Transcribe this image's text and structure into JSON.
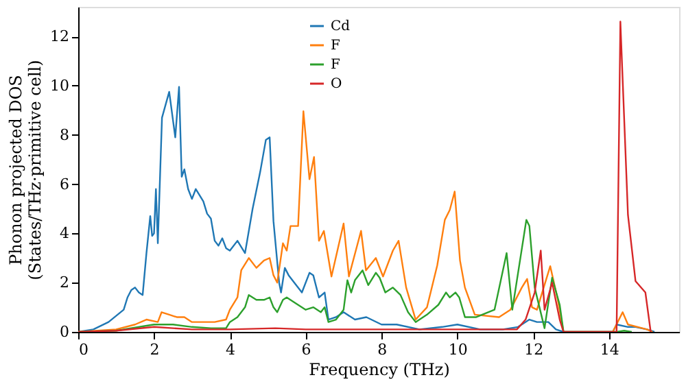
{
  "chart_data": {
    "type": "line",
    "xlabel": "Frequency (THz)",
    "ylabel": "Phonon projected DOS\n(States/THz·primitive cell)",
    "xlim": [
      0,
      15.85
    ],
    "ylim": [
      0,
      13.2
    ],
    "xticks": [
      0,
      2,
      4,
      6,
      8,
      10,
      12,
      14
    ],
    "yticks": [
      0,
      2,
      4,
      6,
      8,
      10,
      12
    ],
    "grid": false,
    "legend": "top",
    "marker": "none",
    "line_style": "solid",
    "series": [
      {
        "name": "Cd",
        "color": "#1f77b4",
        "x": [
          0,
          0.4,
          0.8,
          1.2,
          1.3,
          1.4,
          1.5,
          1.6,
          1.7,
          1.8,
          1.9,
          1.95,
          2.0,
          2.05,
          2.1,
          2.21,
          2.4,
          2.56,
          2.66,
          2.73,
          2.8,
          2.9,
          3.0,
          3.1,
          3.3,
          3.4,
          3.5,
          3.6,
          3.7,
          3.8,
          3.9,
          4.0,
          4.2,
          4.4,
          4.6,
          4.8,
          4.95,
          5.05,
          5.15,
          5.3,
          5.35,
          5.45,
          5.55,
          5.7,
          5.9,
          6.1,
          6.2,
          6.35,
          6.5,
          6.6,
          6.8,
          7.0,
          7.3,
          7.6,
          8.0,
          8.4,
          9.0,
          9.6,
          10.0,
          10.6,
          11.2,
          11.6,
          11.9,
          12.1,
          12.4,
          12.6,
          12.8,
          14.1,
          14.2,
          14.5,
          14.7,
          15.0,
          15.2
        ],
        "values": [
          0,
          0.1,
          0.4,
          0.9,
          1.4,
          1.7,
          1.8,
          1.6,
          1.5,
          3.2,
          4.7,
          3.9,
          4.0,
          5.8,
          3.6,
          8.7,
          9.75,
          7.9,
          9.95,
          6.3,
          6.6,
          5.8,
          5.4,
          5.8,
          5.3,
          4.8,
          4.6,
          3.7,
          3.5,
          3.8,
          3.4,
          3.3,
          3.7,
          3.2,
          5.0,
          6.5,
          7.8,
          7.9,
          4.5,
          2.0,
          1.6,
          2.6,
          2.3,
          2.0,
          1.6,
          2.4,
          2.3,
          1.4,
          1.6,
          0.5,
          0.6,
          0.8,
          0.5,
          0.6,
          0.3,
          0.3,
          0.1,
          0.2,
          0.3,
          0.1,
          0.1,
          0.2,
          0.5,
          0.4,
          0.4,
          0.1,
          0,
          0,
          0.3,
          0.2,
          0.2,
          0.1,
          0
        ]
      },
      {
        "name": "F",
        "color": "#ff7f0e",
        "x": [
          0,
          1,
          1.5,
          1.8,
          2.1,
          2.2,
          2.4,
          2.6,
          2.8,
          3.0,
          3.6,
          3.9,
          4.0,
          4.2,
          4.3,
          4.5,
          4.7,
          4.9,
          5.05,
          5.15,
          5.25,
          5.4,
          5.5,
          5.6,
          5.8,
          5.94,
          6.1,
          6.22,
          6.35,
          6.48,
          6.68,
          7.0,
          7.14,
          7.46,
          7.59,
          7.85,
          8.04,
          8.3,
          8.45,
          8.65,
          8.9,
          9.2,
          9.47,
          9.67,
          9.8,
          9.93,
          10.07,
          10.2,
          10.46,
          11.1,
          11.4,
          11.7,
          11.84,
          11.97,
          12.1,
          12.45,
          12.65,
          12.8,
          14.1,
          14.36,
          14.5,
          15.0,
          15.15
        ],
        "values": [
          0,
          0.1,
          0.3,
          0.5,
          0.4,
          0.8,
          0.7,
          0.6,
          0.6,
          0.4,
          0.4,
          0.5,
          0.9,
          1.4,
          2.5,
          3.0,
          2.6,
          2.9,
          3.0,
          2.3,
          2.0,
          3.6,
          3.3,
          4.3,
          4.3,
          8.96,
          6.2,
          7.1,
          3.7,
          4.1,
          2.25,
          4.4,
          2.25,
          4.1,
          2.5,
          3.0,
          2.25,
          3.3,
          3.7,
          1.8,
          0.5,
          1.0,
          2.7,
          4.55,
          4.95,
          5.7,
          2.9,
          1.8,
          0.7,
          0.6,
          0.9,
          1.8,
          2.15,
          1.0,
          0.9,
          2.67,
          1.3,
          0,
          0,
          0.8,
          0.3,
          0.1,
          0
        ]
      },
      {
        "name": "F",
        "color": "#2ca02c",
        "x": [
          0,
          1,
          2,
          2.5,
          3,
          3.5,
          3.9,
          4.0,
          4.2,
          4.4,
          4.5,
          4.7,
          4.9,
          5.05,
          5.15,
          5.25,
          5.4,
          5.5,
          5.7,
          6.0,
          6.2,
          6.4,
          6.5,
          6.6,
          6.8,
          7.0,
          7.1,
          7.2,
          7.3,
          7.5,
          7.65,
          7.85,
          7.95,
          8.1,
          8.3,
          8.5,
          8.7,
          8.9,
          9.2,
          9.5,
          9.7,
          9.8,
          9.95,
          10.05,
          10.2,
          10.5,
          10.98,
          11.3,
          11.45,
          11.82,
          11.9,
          12.04,
          12.3,
          12.5,
          12.7,
          12.8,
          14.2,
          14.4,
          14.6
        ],
        "values": [
          0,
          0.05,
          0.3,
          0.3,
          0.2,
          0.15,
          0.15,
          0.4,
          0.6,
          1.0,
          1.5,
          1.3,
          1.3,
          1.4,
          1.0,
          0.8,
          1.3,
          1.4,
          1.2,
          0.9,
          1.0,
          0.8,
          1.0,
          0.4,
          0.5,
          0.9,
          2.1,
          1.6,
          2.1,
          2.5,
          1.9,
          2.4,
          2.2,
          1.6,
          1.8,
          1.5,
          0.8,
          0.4,
          0.7,
          1.1,
          1.6,
          1.4,
          1.6,
          1.4,
          0.6,
          0.6,
          0.9,
          3.2,
          0.9,
          4.55,
          4.3,
          1.8,
          0.15,
          2.2,
          1.1,
          0,
          0,
          0.05,
          0
        ]
      },
      {
        "name": "O",
        "color": "#d62728",
        "x": [
          0,
          1,
          2.0,
          3,
          4,
          5.2,
          6,
          7,
          8,
          9,
          10,
          11.3,
          11.57,
          11.8,
          12.04,
          12.2,
          12.3,
          12.5,
          12.7,
          12.8,
          14.2,
          14.3,
          14.5,
          14.7,
          14.96,
          15.1
        ],
        "values": [
          0,
          0.05,
          0.2,
          0.1,
          0.1,
          0.15,
          0.1,
          0.1,
          0.1,
          0.1,
          0.1,
          0.1,
          0.1,
          0.5,
          1.6,
          3.3,
          0.9,
          2.0,
          0.5,
          0,
          0,
          12.6,
          4.75,
          2.06,
          1.6,
          0
        ]
      }
    ]
  }
}
